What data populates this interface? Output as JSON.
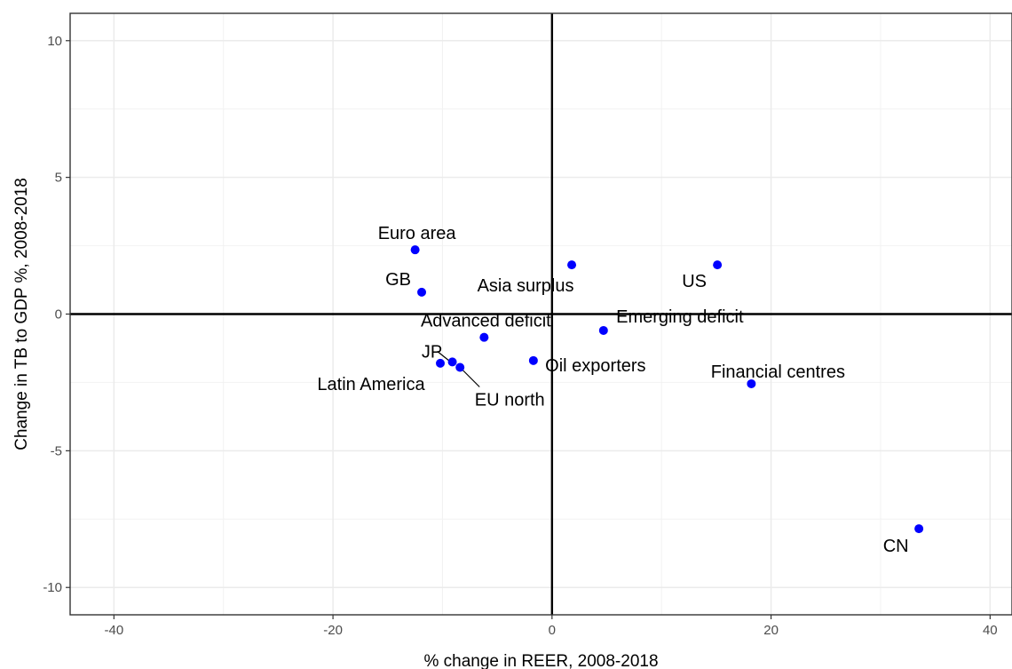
{
  "chart_data": {
    "type": "scatter",
    "title": "",
    "xlabel": "% change in REER, 2008-2018",
    "ylabel": "Change in TB to GDP %, 2008-2018",
    "xlim": [
      -44,
      42
    ],
    "ylim": [
      -11,
      11
    ],
    "x_ticks": [
      -40,
      -20,
      0,
      20,
      40
    ],
    "y_ticks": [
      -10,
      -5,
      0,
      5,
      10
    ],
    "x_tick_labels": [
      "-40",
      "-20",
      "0",
      "20",
      "40"
    ],
    "y_tick_labels": [
      "-10",
      "-5",
      "0",
      "5",
      "10"
    ],
    "grid": true,
    "reference_lines": {
      "x": 0,
      "y": 0
    },
    "point_color": "#0000ff",
    "points": [
      {
        "label": "Euro area",
        "x": -12.5,
        "y": 2.35
      },
      {
        "label": "GB",
        "x": -11.9,
        "y": 0.8
      },
      {
        "label": "Asia surplus",
        "x": 1.8,
        "y": 1.8
      },
      {
        "label": "US",
        "x": 15.1,
        "y": 1.8
      },
      {
        "label": "Advanced deficit",
        "x": -6.2,
        "y": -0.85
      },
      {
        "label": "Emerging deficit",
        "x": 4.7,
        "y": -0.6
      },
      {
        "label": "JP",
        "x": -9.1,
        "y": -1.75
      },
      {
        "label": "Latin America",
        "x": -10.2,
        "y": -1.8
      },
      {
        "label": "EU north",
        "x": -8.4,
        "y": -1.95
      },
      {
        "label": "Oil exporters",
        "x": -1.7,
        "y": -1.7
      },
      {
        "label": "Financial centres",
        "x": 18.2,
        "y": -2.55
      },
      {
        "label": "CN",
        "x": 33.5,
        "y": -7.85
      }
    ]
  }
}
